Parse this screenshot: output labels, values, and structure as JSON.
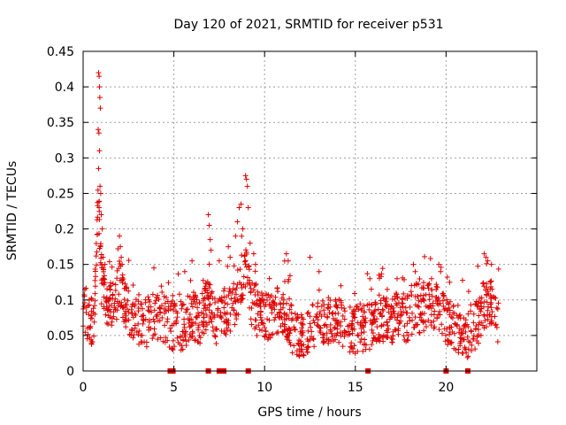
{
  "chart_data": {
    "type": "scatter",
    "title": "Day 120 of 2021, SRMTID for receiver p531",
    "xlabel": "GPS time / hours",
    "ylabel": "SRMTID / TECUs",
    "xlim": [
      0,
      25
    ],
    "ylim": [
      0,
      0.45
    ],
    "xticks": [
      0,
      5,
      10,
      15,
      20
    ],
    "xtick_labels": [
      "0",
      "5",
      "10",
      "15",
      "20"
    ],
    "yticks": [
      0,
      0.05,
      0.1,
      0.15,
      0.2,
      0.25,
      0.3,
      0.35,
      0.4,
      0.45
    ],
    "ytick_labels": [
      "0",
      "0.05",
      "0.1",
      "0.15",
      "0.2",
      "0.25",
      "0.3",
      "0.35",
      "0.4",
      "0.45"
    ],
    "grid": true,
    "marker": "plus",
    "color": "#e00000",
    "data_gaps_at_zero_hours": [
      4.8,
      4.95,
      6.9,
      7.5,
      7.75,
      9.1,
      15.7,
      20.0,
      21.2
    ],
    "envelope": [
      [
        0.0,
        0.09
      ],
      [
        0.3,
        0.075
      ],
      [
        0.6,
        0.065
      ],
      [
        0.85,
        0.25
      ],
      [
        1.0,
        0.12
      ],
      [
        1.3,
        0.1
      ],
      [
        1.6,
        0.085
      ],
      [
        2.0,
        0.12
      ],
      [
        2.3,
        0.095
      ],
      [
        2.7,
        0.07
      ],
      [
        3.2,
        0.065
      ],
      [
        3.6,
        0.07
      ],
      [
        4.0,
        0.08
      ],
      [
        4.5,
        0.075
      ],
      [
        5.0,
        0.06
      ],
      [
        5.5,
        0.065
      ],
      [
        6.0,
        0.08
      ],
      [
        6.5,
        0.07
      ],
      [
        6.9,
        0.1
      ],
      [
        7.3,
        0.07
      ],
      [
        7.7,
        0.08
      ],
      [
        8.0,
        0.085
      ],
      [
        8.4,
        0.095
      ],
      [
        8.7,
        0.13
      ],
      [
        9.0,
        0.15
      ],
      [
        9.3,
        0.09
      ],
      [
        9.7,
        0.08
      ],
      [
        10.2,
        0.075
      ],
      [
        10.7,
        0.085
      ],
      [
        11.2,
        0.075
      ],
      [
        11.6,
        0.055
      ],
      [
        12.0,
        0.045
      ],
      [
        12.4,
        0.05
      ],
      [
        12.8,
        0.065
      ],
      [
        13.3,
        0.075
      ],
      [
        13.8,
        0.07
      ],
      [
        14.3,
        0.065
      ],
      [
        14.8,
        0.055
      ],
      [
        15.3,
        0.06
      ],
      [
        15.8,
        0.065
      ],
      [
        16.3,
        0.075
      ],
      [
        16.8,
        0.07
      ],
      [
        17.3,
        0.08
      ],
      [
        17.8,
        0.075
      ],
      [
        18.3,
        0.09
      ],
      [
        18.8,
        0.085
      ],
      [
        19.3,
        0.095
      ],
      [
        19.8,
        0.085
      ],
      [
        20.3,
        0.06
      ],
      [
        20.8,
        0.05
      ],
      [
        21.2,
        0.045
      ],
      [
        21.6,
        0.06
      ],
      [
        22.0,
        0.09
      ],
      [
        22.4,
        0.1
      ],
      [
        22.9,
        0.07
      ]
    ],
    "spikes": [
      [
        0.85,
        0.42
      ],
      [
        0.88,
        0.415
      ],
      [
        0.9,
        0.4
      ],
      [
        0.92,
        0.385
      ],
      [
        0.95,
        0.37
      ],
      [
        0.83,
        0.34
      ],
      [
        0.87,
        0.335
      ],
      [
        0.9,
        0.31
      ],
      [
        0.85,
        0.285
      ],
      [
        0.93,
        0.26
      ],
      [
        0.97,
        0.25
      ],
      [
        0.88,
        0.23
      ],
      [
        1.0,
        0.22
      ],
      [
        1.05,
        0.2
      ],
      [
        0.95,
        0.175
      ],
      [
        1.1,
        0.16
      ],
      [
        1.2,
        0.15
      ],
      [
        2.0,
        0.19
      ],
      [
        2.05,
        0.175
      ],
      [
        2.1,
        0.16
      ],
      [
        2.15,
        0.15
      ],
      [
        3.9,
        0.145
      ],
      [
        5.6,
        0.14
      ],
      [
        6.0,
        0.155
      ],
      [
        6.9,
        0.22
      ],
      [
        6.95,
        0.205
      ],
      [
        7.0,
        0.185
      ],
      [
        7.05,
        0.17
      ],
      [
        7.5,
        0.155
      ],
      [
        8.0,
        0.175
      ],
      [
        8.1,
        0.16
      ],
      [
        8.4,
        0.19
      ],
      [
        8.5,
        0.21
      ],
      [
        8.6,
        0.23
      ],
      [
        8.7,
        0.235
      ],
      [
        8.8,
        0.2
      ],
      [
        8.95,
        0.275
      ],
      [
        9.0,
        0.27
      ],
      [
        9.05,
        0.26
      ],
      [
        9.1,
        0.23
      ],
      [
        9.2,
        0.18
      ],
      [
        9.4,
        0.165
      ],
      [
        9.5,
        0.15
      ],
      [
        11.2,
        0.165
      ],
      [
        11.3,
        0.155
      ],
      [
        12.5,
        0.16
      ],
      [
        13.0,
        0.14
      ],
      [
        14.2,
        0.12
      ],
      [
        15.8,
        0.13
      ],
      [
        16.3,
        0.135
      ],
      [
        17.3,
        0.13
      ],
      [
        18.2,
        0.15
      ],
      [
        18.3,
        0.14
      ],
      [
        19.2,
        0.13
      ],
      [
        19.6,
        0.15
      ],
      [
        19.7,
        0.14
      ],
      [
        20.2,
        0.125
      ],
      [
        22.1,
        0.165
      ],
      [
        22.2,
        0.16
      ],
      [
        22.3,
        0.155
      ],
      [
        22.5,
        0.15
      ]
    ],
    "n_points": 1400,
    "seed": 120
  }
}
